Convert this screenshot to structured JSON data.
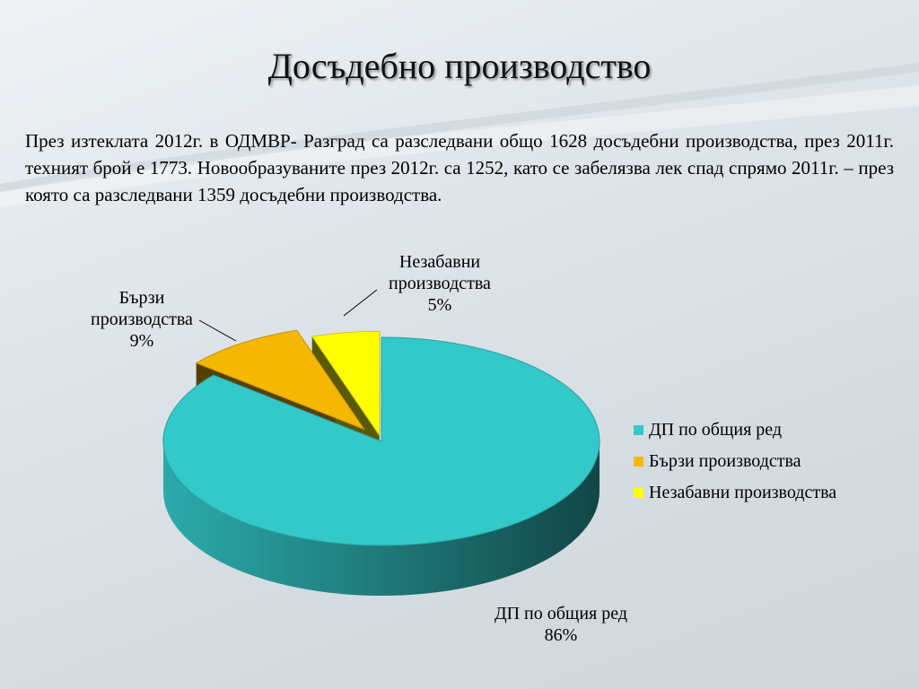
{
  "slide": {
    "title": "Досъдебно производство",
    "paragraph": "През изтеклата 2012г. в ОДМВР- Разград са разследвани общо 1628 досъдебни производства, през 2011г. техният брой е  1773.  Новообразуваните през 2012г. са 1252, като се забелязва лек спад спрямо 2011г. – през която са разследвани 1359 досъдебни производства."
  },
  "colors": {
    "teal": "#33C9C9",
    "orange": "#F5B800",
    "yellow": "#FFFF00"
  },
  "chart_data": {
    "type": "pie",
    "title": "",
    "categories": [
      "ДП по общия ред",
      "Бързи производства",
      "Незабавни производства"
    ],
    "values": [
      86,
      9,
      5
    ],
    "value_format": "percent",
    "labels": [
      {
        "lines": [
          "ДП по общия ред",
          "86%"
        ]
      },
      {
        "lines": [
          "Бързи",
          "производства",
          "9%"
        ]
      },
      {
        "lines": [
          "Незабавни",
          "производства",
          "5%"
        ]
      }
    ],
    "legend_position": "right",
    "style": "3d-exploded",
    "grid": false
  }
}
